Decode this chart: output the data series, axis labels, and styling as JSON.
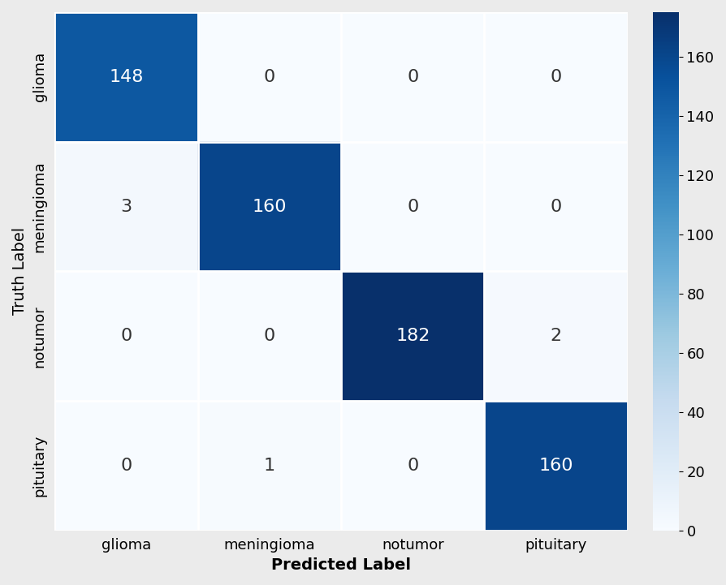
{
  "matrix": [
    [
      148,
      0,
      0,
      0
    ],
    [
      3,
      160,
      0,
      0
    ],
    [
      0,
      0,
      182,
      2
    ],
    [
      0,
      1,
      0,
      160
    ]
  ],
  "labels": [
    "glioma",
    "meningioma",
    "notumor",
    "pituitary"
  ],
  "xlabel": "Predicted Label",
  "ylabel": "Truth Label",
  "colormap": "Blues",
  "vmin": 0,
  "vmax": 175,
  "text_color_threshold": 80,
  "high_text_color": "#ffffff",
  "low_text_color": "#333333",
  "background_color": "#ebebeb",
  "fontsize_numbers": 16,
  "fontsize_labels": 13,
  "fontsize_axis_labels": 14,
  "xlabel_bold": true,
  "ylabel_bold": false
}
